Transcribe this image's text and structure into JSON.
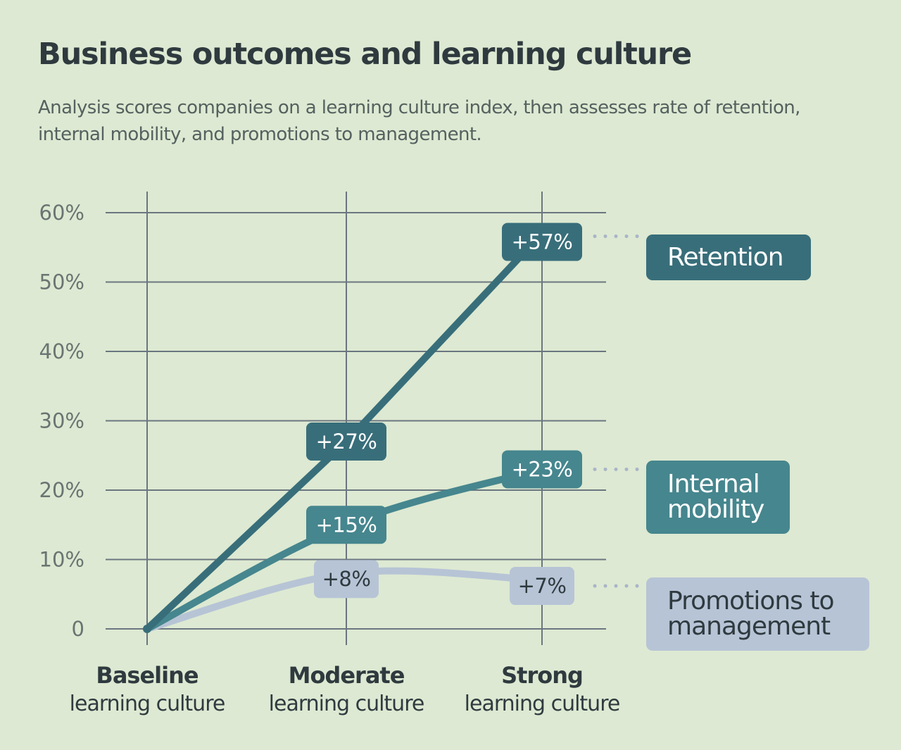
{
  "title": "Business outcomes and learning culture",
  "subtitle": "Analysis scores companies on a learning culture index, then assesses rate of retention, internal mobility, and promotions to management.",
  "colors": {
    "background": "#dde9d2",
    "grid": "#6b7680",
    "text": "#2f3a3f"
  },
  "chart_data": {
    "type": "line",
    "categories": [
      {
        "name": "Baseline",
        "sub": "learning culture"
      },
      {
        "name": "Moderate",
        "sub": "learning culture"
      },
      {
        "name": "Strong",
        "sub": "learning culture"
      }
    ],
    "ylim": [
      0,
      60
    ],
    "yticks": [
      0,
      10,
      20,
      30,
      40,
      50,
      60
    ],
    "ytick_labels": [
      "0",
      "10%",
      "20%",
      "30%",
      "40%",
      "50%",
      "60%"
    ],
    "grid": true,
    "legend_placement": "right",
    "series": [
      {
        "name": "Retention",
        "values": [
          0,
          27,
          57
        ],
        "labels": [
          "",
          "+27%",
          "+57%"
        ],
        "color": "#386e7a",
        "text_color": "#ffffff"
      },
      {
        "name": "Internal mobility",
        "values": [
          0,
          15,
          23
        ],
        "labels": [
          "",
          "+15%",
          "+23%"
        ],
        "color": "#46868e",
        "text_color": "#ffffff"
      },
      {
        "name": "Promotions to management",
        "values": [
          0,
          8,
          7
        ],
        "labels": [
          "",
          "+8%",
          "+7%"
        ],
        "color": "#b7c4d6",
        "text_color": "#2f3a3f"
      }
    ]
  }
}
